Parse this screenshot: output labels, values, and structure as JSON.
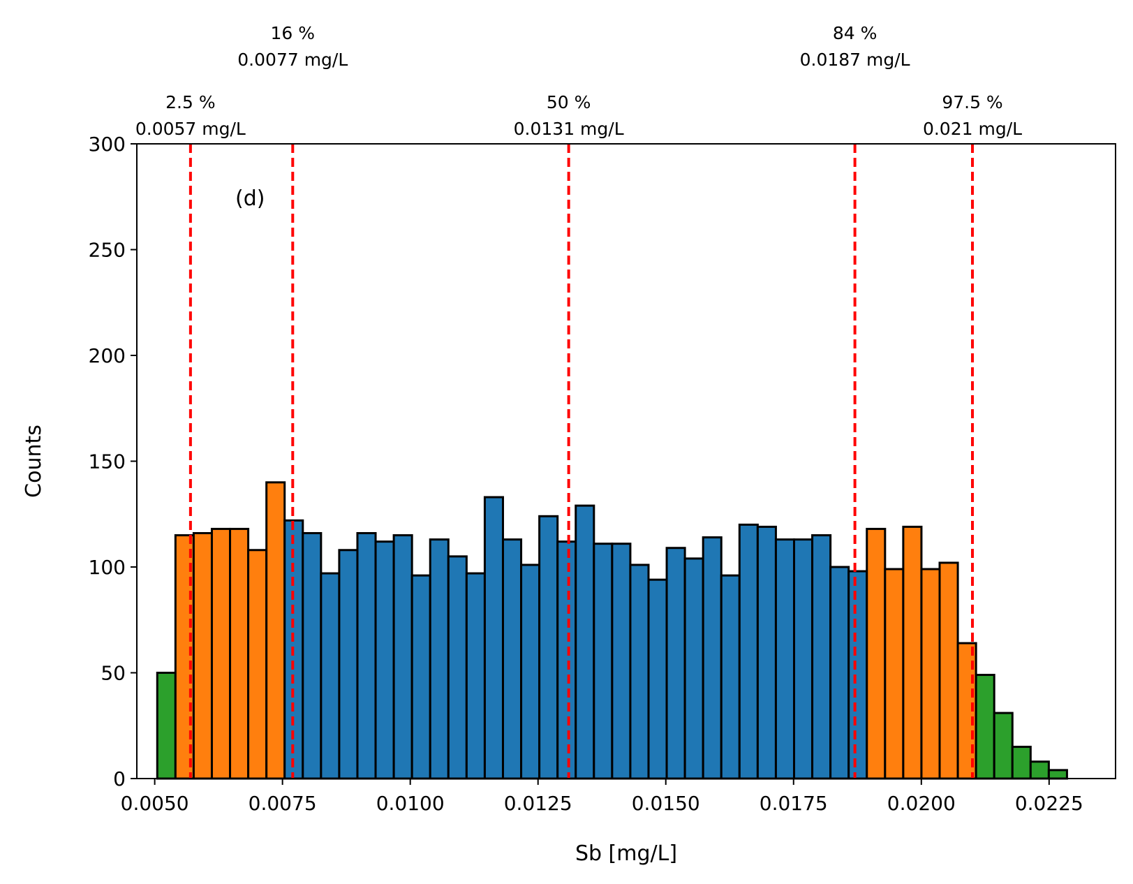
{
  "chart_data": {
    "type": "bar",
    "subtype": "histogram",
    "panel_label": "(d)",
    "xlabel": "Sb [mg/L]",
    "ylabel": "Counts",
    "xlim": [
      0.00465,
      0.0238
    ],
    "ylim": [
      0,
      300
    ],
    "grid": false,
    "bin_start": 0.00505,
    "bin_width": 0.000356,
    "counts": [
      50,
      115,
      116,
      118,
      118,
      108,
      140,
      122,
      116,
      97,
      108,
      116,
      112,
      115,
      96,
      113,
      105,
      97,
      133,
      113,
      101,
      124,
      112,
      129,
      111,
      111,
      101,
      94,
      109,
      104,
      114,
      96,
      120,
      119,
      113,
      113,
      115,
      100,
      98,
      118,
      99,
      119,
      99,
      102,
      64,
      49,
      31,
      15,
      8,
      4
    ],
    "bin_groups": [
      "tail",
      "mid",
      "mid",
      "mid",
      "mid",
      "mid",
      "mid",
      "core",
      "core",
      "core",
      "core",
      "core",
      "core",
      "core",
      "core",
      "core",
      "core",
      "core",
      "core",
      "core",
      "core",
      "core",
      "core",
      "core",
      "core",
      "core",
      "core",
      "core",
      "core",
      "core",
      "core",
      "core",
      "core",
      "core",
      "core",
      "core",
      "core",
      "core",
      "core",
      "mid",
      "mid",
      "mid",
      "mid",
      "mid",
      "mid",
      "tail",
      "tail",
      "tail",
      "tail",
      "tail"
    ],
    "colors": {
      "core": "#1f77b4",
      "mid": "#ff7f0e",
      "tail": "#2ca02c",
      "edge": "#000000",
      "percentile_line": "#ff0000"
    },
    "x_ticks": [
      {
        "value": 0.005,
        "label": "0.0050"
      },
      {
        "value": 0.0075,
        "label": "0.0075"
      },
      {
        "value": 0.01,
        "label": "0.0100"
      },
      {
        "value": 0.0125,
        "label": "0.0125"
      },
      {
        "value": 0.015,
        "label": "0.0150"
      },
      {
        "value": 0.0175,
        "label": "0.0175"
      },
      {
        "value": 0.02,
        "label": "0.0200"
      },
      {
        "value": 0.0225,
        "label": "0.0225"
      }
    ],
    "y_ticks": [
      {
        "value": 0,
        "label": "0"
      },
      {
        "value": 50,
        "label": "50"
      },
      {
        "value": 100,
        "label": "100"
      },
      {
        "value": 150,
        "label": "150"
      },
      {
        "value": 200,
        "label": "200"
      },
      {
        "value": 250,
        "label": "250"
      },
      {
        "value": 300,
        "label": "300"
      }
    ],
    "percentiles": [
      {
        "value": 0.0057,
        "percent": "2.5 %",
        "label": "0.0057 mg/L",
        "row": "lower"
      },
      {
        "value": 0.0077,
        "percent": "16 %",
        "label": "0.0077 mg/L",
        "row": "upper"
      },
      {
        "value": 0.0131,
        "percent": "50 %",
        "label": "0.0131 mg/L",
        "row": "lower"
      },
      {
        "value": 0.0187,
        "percent": "84 %",
        "label": "0.0187 mg/L",
        "row": "upper"
      },
      {
        "value": 0.021,
        "percent": "97.5 %",
        "label": "0.021 mg/L",
        "row": "lower"
      }
    ]
  }
}
